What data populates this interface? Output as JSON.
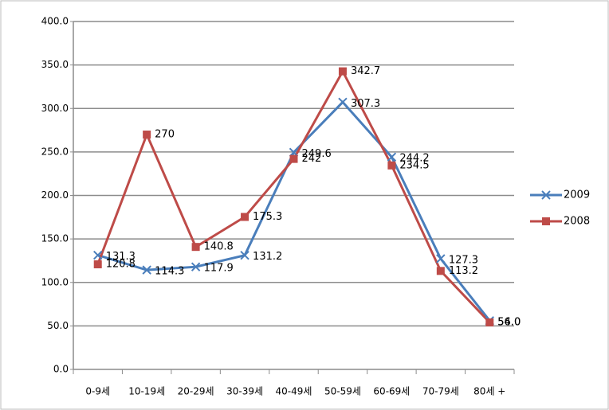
{
  "chart_data": {
    "type": "line",
    "categories": [
      "0-9세",
      "10-19세",
      "20-29세",
      "30-39세",
      "40-49세",
      "50-59세",
      "60-69세",
      "70-79세",
      "80세 +"
    ],
    "series": [
      {
        "name": "2009",
        "color": "#4a7ebb",
        "marker": "x",
        "values": [
          131.3,
          114.3,
          117.9,
          131.2,
          249.6,
          307.3,
          244.2,
          127.3,
          56.0
        ],
        "value_labels": [
          "131.3",
          "114.3",
          "117.9",
          "131.2",
          "249.6",
          "307.3",
          "244.2",
          "127.3",
          "56.0"
        ]
      },
      {
        "name": "2008",
        "color": "#be4b48",
        "marker": "square",
        "values": [
          120.8,
          270,
          140.8,
          175.3,
          242,
          342.7,
          234.5,
          113.2,
          54.0
        ],
        "value_labels": [
          "120.8",
          "270",
          "140.8",
          "175.3",
          "242",
          "342.7",
          "234.5",
          "113.2",
          "54.0"
        ]
      }
    ],
    "ylim": [
      0,
      400
    ],
    "yticks": [
      {
        "value": 0,
        "label": "0.0"
      },
      {
        "value": 50,
        "label": "50.0"
      },
      {
        "value": 100,
        "label": "100.0"
      },
      {
        "value": 150,
        "label": "150.0"
      },
      {
        "value": 200,
        "label": "200.0"
      },
      {
        "value": 250,
        "label": "250.0"
      },
      {
        "value": 300,
        "label": "300.0"
      },
      {
        "value": 350,
        "label": "350.0"
      },
      {
        "value": 400,
        "label": "400.0"
      }
    ],
    "grid": true,
    "legend": "right"
  }
}
